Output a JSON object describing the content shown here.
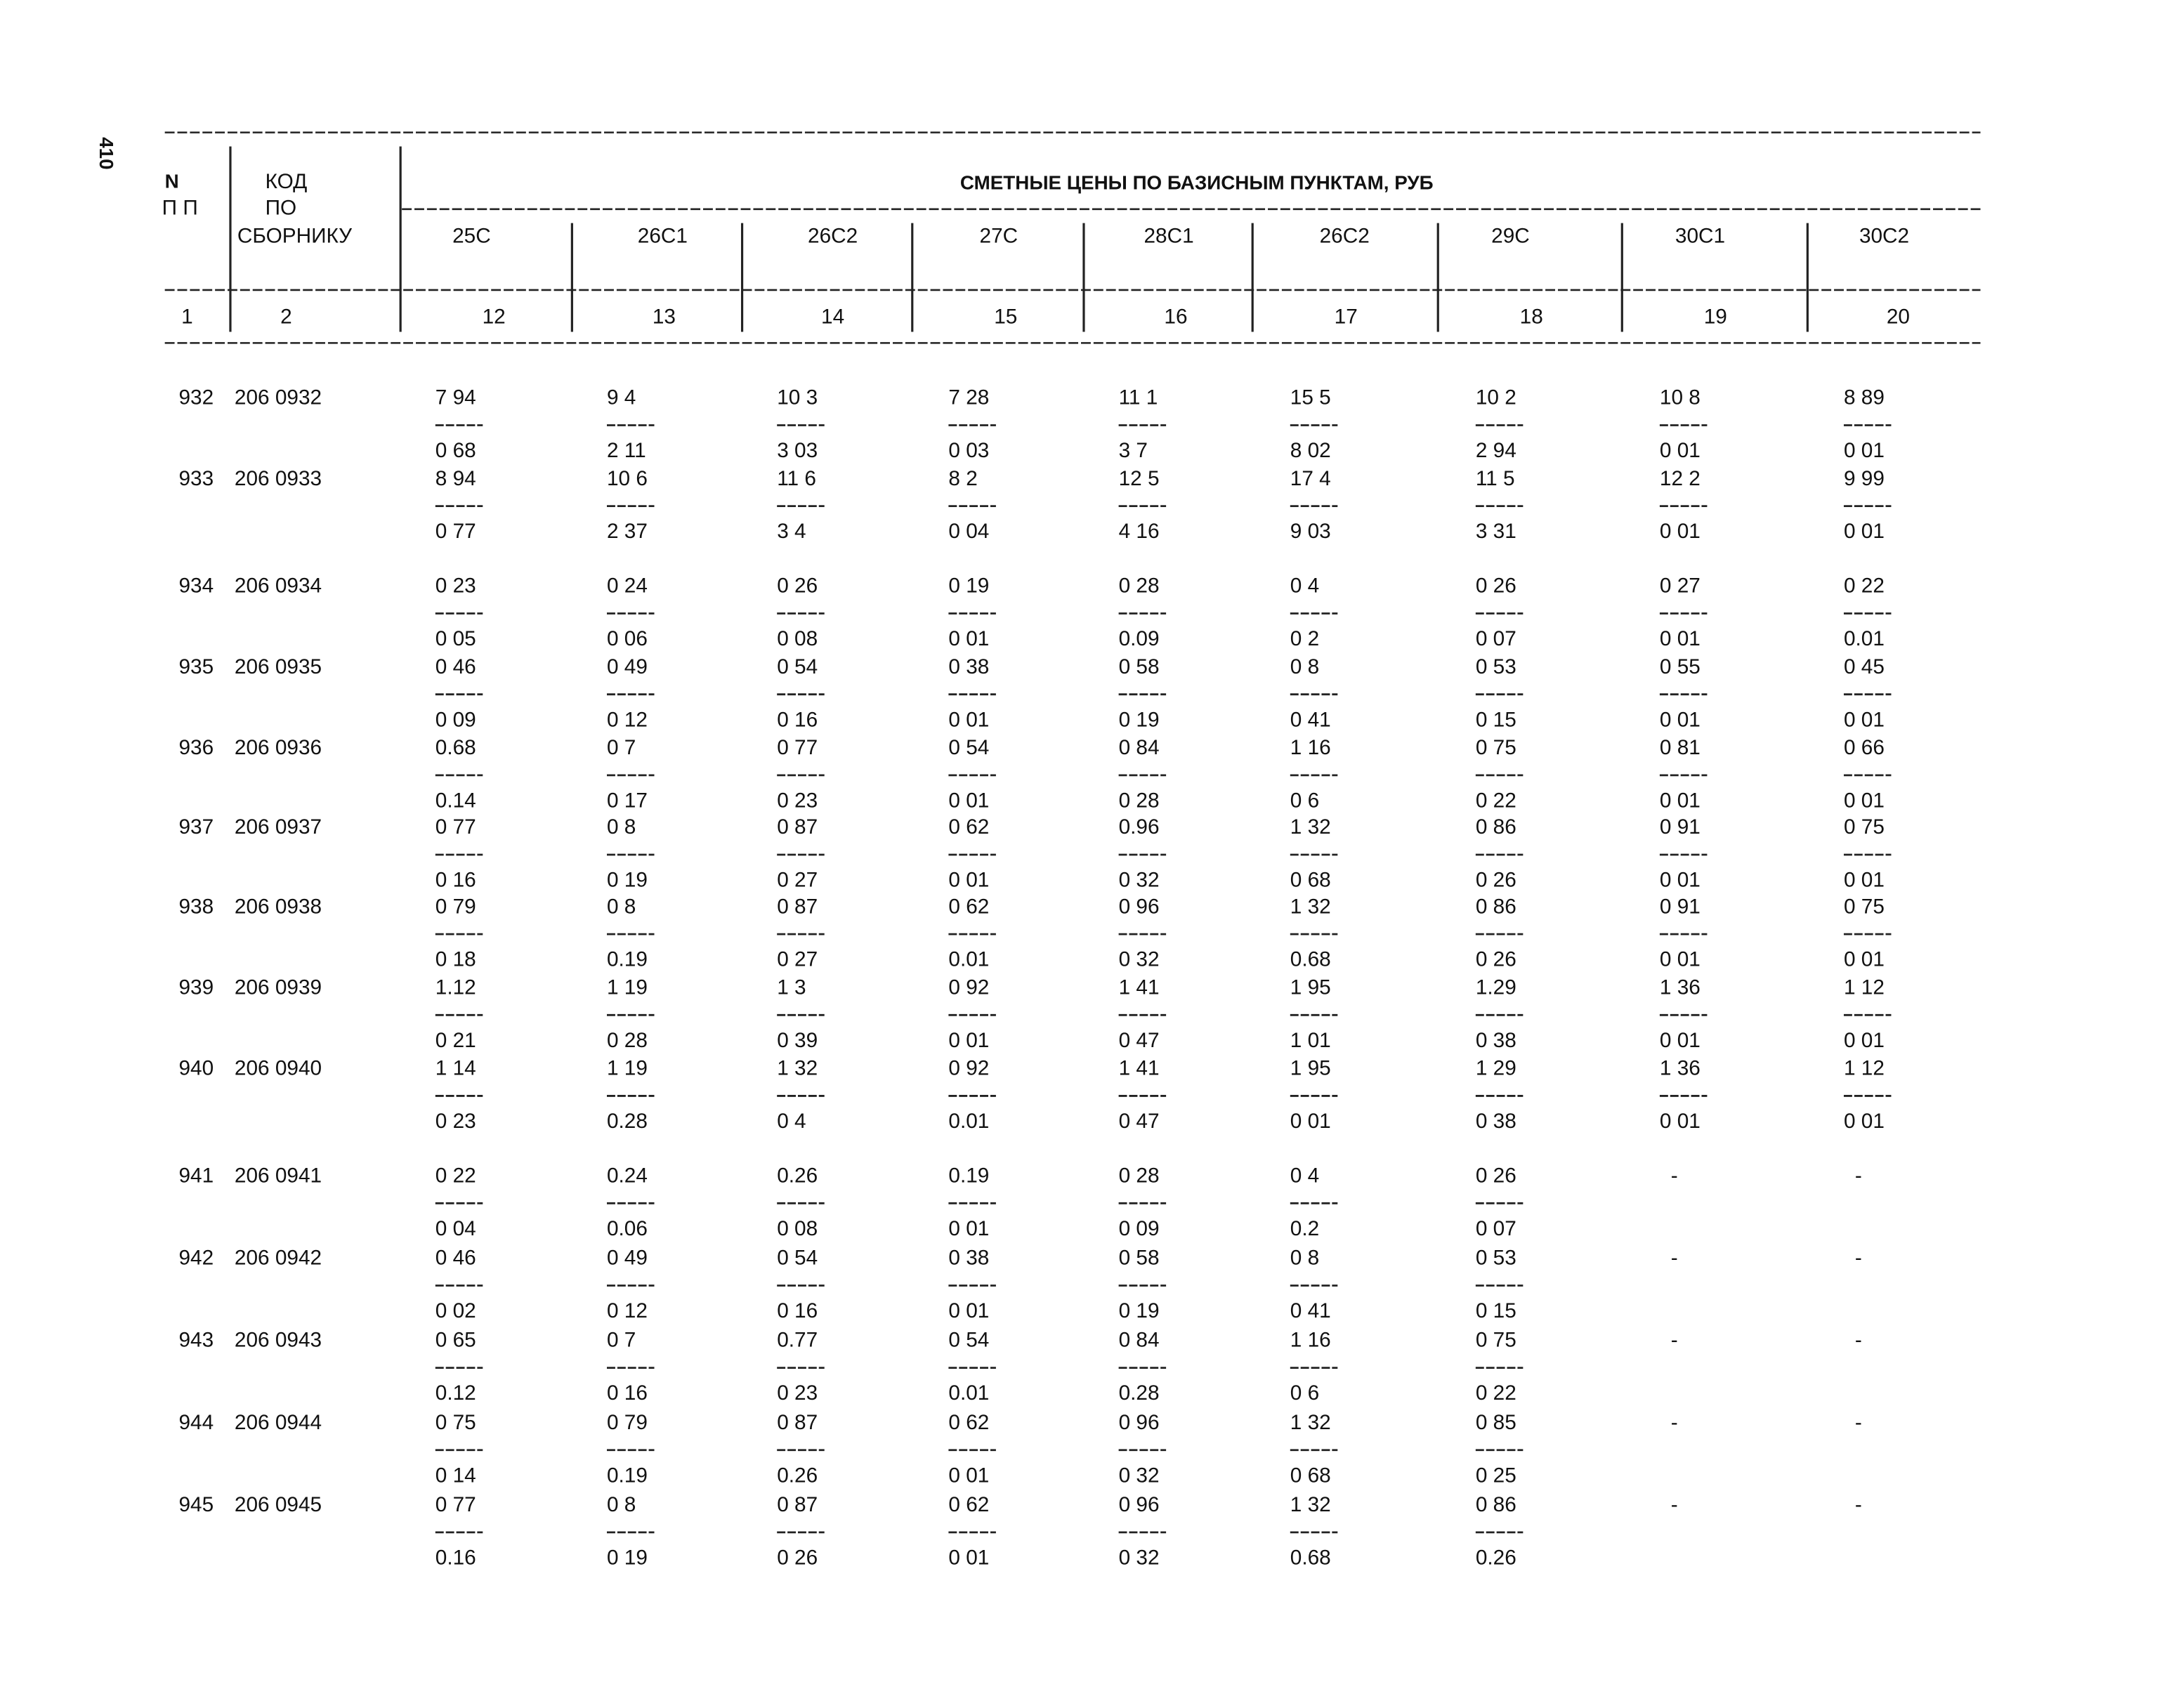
{
  "page_number": "410",
  "header": {
    "n": "N",
    "n2": "П П",
    "code": "КОД",
    "code2": "ПО",
    "code3": "СБОРНИКУ",
    "title": "СМЕТНЫЕ ЦЕНЫ ПО БАЗИСНЫМ ПУНКТАМ, РУБ",
    "columns": [
      "25С",
      "26С1",
      "26С2",
      "27С",
      "28С1",
      "26С2",
      "29С",
      "30С1",
      "30С2"
    ],
    "numbers": [
      "1",
      "2",
      "12",
      "13",
      "14",
      "15",
      "16",
      "17",
      "18",
      "19",
      "20"
    ]
  },
  "table": {
    "rows": [
      {
        "n": "932",
        "code": "206 0932",
        "cells": [
          [
            "7 94",
            "0 68"
          ],
          [
            "9 4",
            "2 11"
          ],
          [
            "10 3",
            "3 03"
          ],
          [
            "7 28",
            "0 03"
          ],
          [
            "11 1",
            "3 7"
          ],
          [
            "15 5",
            "8 02"
          ],
          [
            "10 2",
            "2 94"
          ],
          [
            "10 8",
            "0 01"
          ],
          [
            "8 89",
            "0 01"
          ]
        ]
      },
      {
        "n": "933",
        "code": "206 0933",
        "cells": [
          [
            "8 94",
            "0 77"
          ],
          [
            "10 6",
            "2 37"
          ],
          [
            "11 6",
            "3 4"
          ],
          [
            "8 2",
            "0 04"
          ],
          [
            "12 5",
            "4 16"
          ],
          [
            "17 4",
            "9 03"
          ],
          [
            "11 5",
            "3 31"
          ],
          [
            "12 2",
            "0 01"
          ],
          [
            "9 99",
            "0 01"
          ]
        ]
      },
      {
        "n": "934",
        "code": "206 0934",
        "cells": [
          [
            "0 23",
            "0 05"
          ],
          [
            "0 24",
            "0 06"
          ],
          [
            "0 26",
            "0 08"
          ],
          [
            "0 19",
            "0 01"
          ],
          [
            "0 28",
            "0.09"
          ],
          [
            "0 4",
            "0 2"
          ],
          [
            "0 26",
            "0 07"
          ],
          [
            "0 27",
            "0 01"
          ],
          [
            "0 22",
            "0.01"
          ]
        ]
      },
      {
        "n": "935",
        "code": "206 0935",
        "cells": [
          [
            "0 46",
            "0 09"
          ],
          [
            "0 49",
            "0 12"
          ],
          [
            "0 54",
            "0 16"
          ],
          [
            "0 38",
            "0 01"
          ],
          [
            "0 58",
            "0 19"
          ],
          [
            "0 8",
            "0 41"
          ],
          [
            "0 53",
            "0 15"
          ],
          [
            "0 55",
            "0 01"
          ],
          [
            "0 45",
            "0 01"
          ]
        ]
      },
      {
        "n": "936",
        "code": "206 0936",
        "cells": [
          [
            "0.68",
            "0.14"
          ],
          [
            "0 7",
            "0 17"
          ],
          [
            "0 77",
            "0 23"
          ],
          [
            "0 54",
            "0 01"
          ],
          [
            "0 84",
            "0 28"
          ],
          [
            "1 16",
            "0 6"
          ],
          [
            "0 75",
            "0 22"
          ],
          [
            "0 81",
            "0 01"
          ],
          [
            "0 66",
            "0 01"
          ]
        ]
      },
      {
        "n": "937",
        "code": "206 0937",
        "cells": [
          [
            "0 77",
            "0 16"
          ],
          [
            "0 8",
            "0 19"
          ],
          [
            "0 87",
            "0 27"
          ],
          [
            "0 62",
            "0 01"
          ],
          [
            "0.96",
            "0 32"
          ],
          [
            "1 32",
            "0 68"
          ],
          [
            "0 86",
            "0 26"
          ],
          [
            "0 91",
            "0 01"
          ],
          [
            "0 75",
            "0 01"
          ]
        ]
      },
      {
        "n": "938",
        "code": "206 0938",
        "cells": [
          [
            "0 79",
            "0 18"
          ],
          [
            "0 8",
            "0.19"
          ],
          [
            "0 87",
            "0 27"
          ],
          [
            "0 62",
            "0.01"
          ],
          [
            "0 96",
            "0 32"
          ],
          [
            "1 32",
            "0.68"
          ],
          [
            "0 86",
            "0 26"
          ],
          [
            "0 91",
            "0 01"
          ],
          [
            "0 75",
            "0 01"
          ]
        ]
      },
      {
        "n": "939",
        "code": "206 0939",
        "cells": [
          [
            "1.12",
            "0 21"
          ],
          [
            "1 19",
            "0 28"
          ],
          [
            "1 3",
            "0 39"
          ],
          [
            "0 92",
            "0 01"
          ],
          [
            "1 41",
            "0 47"
          ],
          [
            "1 95",
            "1 01"
          ],
          [
            "1.29",
            "0 38"
          ],
          [
            "1 36",
            "0 01"
          ],
          [
            "1 12",
            "0 01"
          ]
        ]
      },
      {
        "n": "940",
        "code": "206 0940",
        "cells": [
          [
            "1 14",
            "0 23"
          ],
          [
            "1 19",
            "0.28"
          ],
          [
            "1 32",
            "0 4"
          ],
          [
            "0 92",
            "0.01"
          ],
          [
            "1 41",
            "0 47"
          ],
          [
            "1 95",
            "0 01"
          ],
          [
            "1 29",
            "0 38"
          ],
          [
            "1 36",
            "0 01"
          ],
          [
            "1 12",
            "0 01"
          ]
        ]
      },
      {
        "n": "941",
        "code": "206 0941",
        "cells": [
          [
            "0 22",
            "0 04"
          ],
          [
            "0.24",
            "0.06"
          ],
          [
            "0.26",
            "0 08"
          ],
          [
            "0.19",
            "0 01"
          ],
          [
            "0 28",
            "0 09"
          ],
          [
            "0 4",
            "0.2"
          ],
          [
            "0 26",
            "0 07"
          ],
          [
            "-"
          ],
          [
            "-"
          ]
        ]
      },
      {
        "n": "942",
        "code": "206 0942",
        "cells": [
          [
            "0 46",
            "0 02"
          ],
          [
            "0 49",
            "0 12"
          ],
          [
            "0 54",
            "0 16"
          ],
          [
            "0 38",
            "0 01"
          ],
          [
            "0 58",
            "0 19"
          ],
          [
            "0 8",
            "0 41"
          ],
          [
            "0 53",
            "0 15"
          ],
          [
            "-"
          ],
          [
            "-"
          ]
        ]
      },
      {
        "n": "943",
        "code": "206 0943",
        "cells": [
          [
            "0 65",
            "0.12"
          ],
          [
            "0 7",
            "0 16"
          ],
          [
            "0.77",
            "0 23"
          ],
          [
            "0 54",
            "0.01"
          ],
          [
            "0 84",
            "0.28"
          ],
          [
            "1 16",
            "0 6"
          ],
          [
            "0 75",
            "0 22"
          ],
          [
            "-"
          ],
          [
            "-"
          ]
        ]
      },
      {
        "n": "944",
        "code": "206 0944",
        "cells": [
          [
            "0 75",
            "0 14"
          ],
          [
            "0 79",
            "0.19"
          ],
          [
            "0 87",
            "0.26"
          ],
          [
            "0 62",
            "0 01"
          ],
          [
            "0 96",
            "0 32"
          ],
          [
            "1 32",
            "0 68"
          ],
          [
            "0 85",
            "0 25"
          ],
          [
            "-"
          ],
          [
            "-"
          ]
        ]
      },
      {
        "n": "945",
        "code": "206 0945",
        "cells": [
          [
            "0 77",
            "0.16"
          ],
          [
            "0 8",
            "0 19"
          ],
          [
            "0 87",
            "0 26"
          ],
          [
            "0 62",
            "0 01"
          ],
          [
            "0 96",
            "0 32"
          ],
          [
            "1 32",
            "0.68"
          ],
          [
            "0 86",
            "0.26"
          ],
          [
            "-"
          ],
          [
            "-"
          ]
        ]
      }
    ]
  }
}
